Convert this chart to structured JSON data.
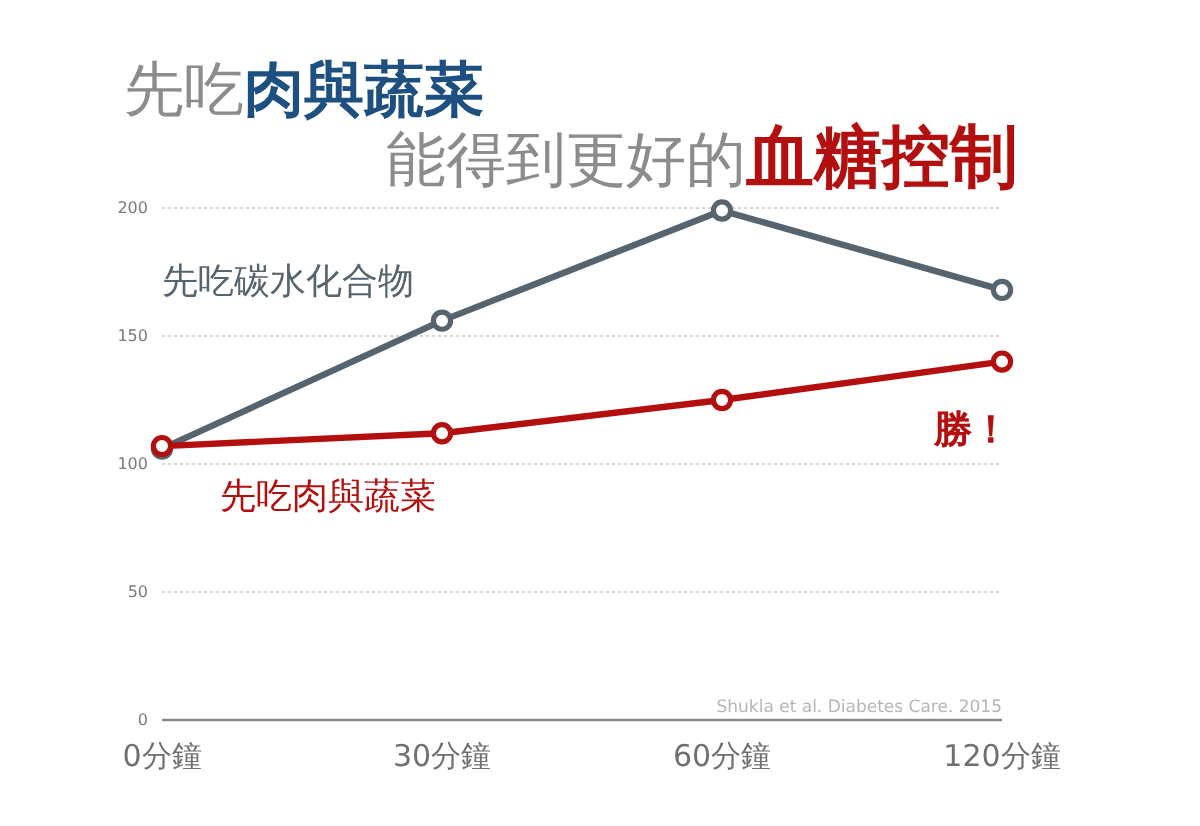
{
  "chart_data": {
    "type": "line",
    "title": "先吃肉與蔬菜",
    "subtitle": "能得到更好的血糖控制",
    "categories": [
      "0分鐘",
      "30分鐘",
      "60分鐘",
      "120分鐘"
    ],
    "series": [
      {
        "name": "先吃碳水化合物",
        "color": "#55646e",
        "values": [
          106,
          156,
          199,
          168
        ]
      },
      {
        "name": "先吃肉與蔬菜",
        "color": "#b40f0f",
        "values": [
          107,
          112,
          125,
          140
        ]
      }
    ],
    "ylim": [
      0,
      200
    ],
    "yticks": [
      0,
      50,
      100,
      150,
      200
    ],
    "grid": "y",
    "marker": "circle",
    "line_style": "solid",
    "annotations": [
      "勝！",
      "Shukla et al. Diabetes Care. 2015"
    ]
  }
}
